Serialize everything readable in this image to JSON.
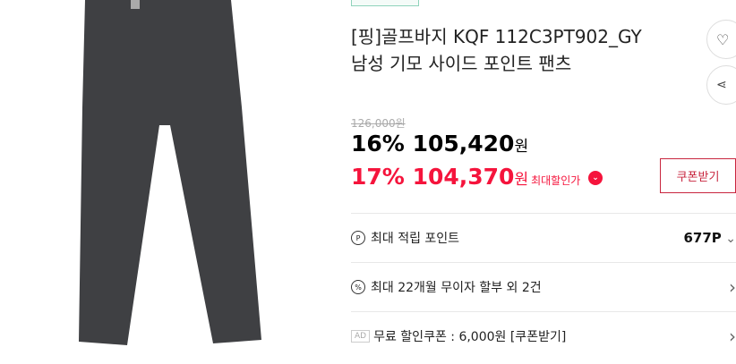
{
  "product": {
    "title_line1": "[핑]골프바지 KQF 112C3PT902_GY",
    "title_line2": "남성 기모 사이드 포인트 팬츠"
  },
  "price": {
    "original": "126,000원",
    "discount1_pct": "16%",
    "discount1_price": "105,420",
    "won": "원",
    "discount2_pct": "17%",
    "discount2_price": "104,370",
    "max_discount_label": "최대할인가",
    "coupon_button": "쿠폰받기"
  },
  "benefits": [
    {
      "icon": "point-icon",
      "glyph": "P",
      "label": "최대 적립 포인트",
      "value": "677P",
      "arrow": "⌄"
    },
    {
      "icon": "percent-icon",
      "glyph": "%",
      "label": "최대 22개월 무이자 할부 외 2건",
      "arrow": "›"
    },
    {
      "icon": "ad-badge",
      "glyph": "AD",
      "label": "무료 할인쿠폰 : 6,000원 [쿠폰받기]",
      "arrow": "›"
    }
  ],
  "colors": {
    "accent": "#f5143c",
    "pants": "#3f4043"
  }
}
